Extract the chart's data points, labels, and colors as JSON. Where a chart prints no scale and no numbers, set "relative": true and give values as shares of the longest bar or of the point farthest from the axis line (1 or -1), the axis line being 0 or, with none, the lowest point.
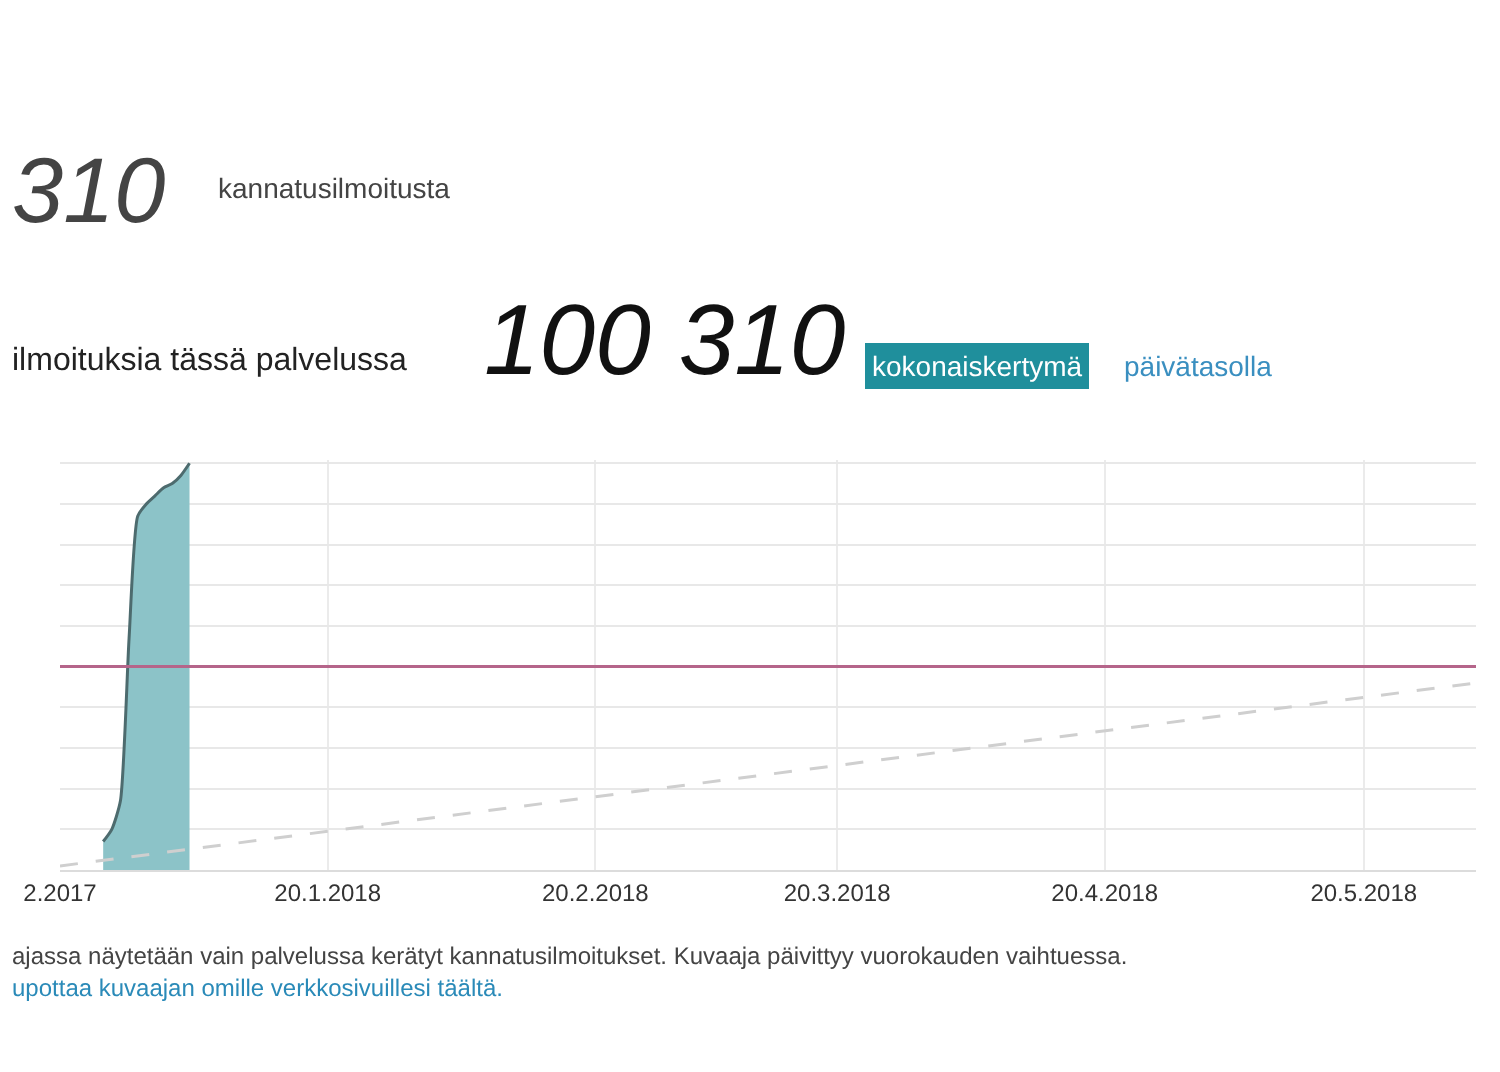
{
  "chart_data": {
    "type": "area",
    "relative": true,
    "x": [
      "2017-12-25",
      "2017-12-26",
      "2017-12-27",
      "2017-12-28",
      "2017-12-29",
      "2017-12-30",
      "2017-12-31",
      "2018-01-01",
      "2018-01-02",
      "2018-01-03",
      "2018-01-04"
    ],
    "series": [
      {
        "color": "#8cc3c8",
        "values": [
          0.07,
          0.1,
          0.17,
          0.57,
          0.87,
          0.9,
          0.92,
          0.94,
          0.95,
          0.97,
          1
        ]
      },
      {
        "type": "line",
        "line_style": "dashed",
        "color": "#cfcfcf",
        "x": [
          "2017-12-20",
          "2018-06-02"
        ],
        "values": [
          0.01,
          0.46
        ]
      }
    ],
    "xlim": [
      "2017-12-20",
      "2018-06-02"
    ],
    "xticks": [
      {
        "value": "2017-12-20",
        "label": "2.2017"
      },
      {
        "value": "2018-01-20",
        "label": "20.1.2018"
      },
      {
        "value": "2018-02-20",
        "label": "20.2.2018"
      },
      {
        "value": "2018-03-20",
        "label": "20.3.2018"
      },
      {
        "value": "2018-04-20",
        "label": "20.4.2018"
      },
      {
        "value": "2018-05-20",
        "label": "20.5.2018"
      }
    ],
    "ref_lines": [
      {
        "axis": "y",
        "value": 0.5,
        "color": "#b5658a"
      }
    ],
    "grid": true,
    "tick_labels": "x",
    "annotations": [
      "310",
      "kannatusilmoitusta",
      "ilmoituksia tässä palvelussa",
      "100 310",
      "kokonaiskertymä",
      "päivätasolla",
      "ajassa näytetään vain palvelussa kerätyt kannatusilmoitukset. Kuvaaja päivittyy vuorokauden vaihtuessa.",
      "upottaa kuvaajan omille verkkosivuillesi täältä."
    ]
  }
}
